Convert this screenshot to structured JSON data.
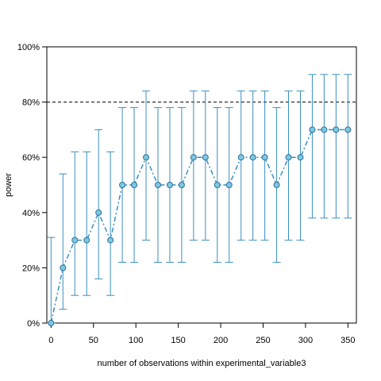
{
  "chart_data": {
    "type": "line",
    "title": "",
    "xlabel": "number of observations within experimental_variable3",
    "ylabel": "power",
    "xlim": [
      -5,
      360
    ],
    "ylim": [
      0,
      1
    ],
    "x_ticks": [
      0,
      50,
      100,
      150,
      200,
      250,
      300,
      350
    ],
    "x_tick_labels": [
      "0",
      "50",
      "100",
      "150",
      "200",
      "250",
      "300",
      "350"
    ],
    "y_ticks": [
      0,
      0.2,
      0.4,
      0.6,
      0.8,
      1.0
    ],
    "y_tick_labels": [
      "0%",
      "20%",
      "40%",
      "60%",
      "80%",
      "100%"
    ],
    "reference_line": {
      "y": 0.8,
      "style": "dashed",
      "color": "#000000"
    },
    "series": [
      {
        "x": [
          0,
          14,
          28,
          42,
          56,
          70,
          84,
          98,
          112,
          126,
          140,
          154,
          168,
          182,
          196,
          210,
          224,
          238,
          252,
          266,
          280,
          294,
          308,
          322,
          336,
          350
        ],
        "y": [
          0.0,
          0.2,
          0.3,
          0.3,
          0.4,
          0.3,
          0.5,
          0.5,
          0.6,
          0.5,
          0.5,
          0.5,
          0.6,
          0.6,
          0.5,
          0.5,
          0.6,
          0.6,
          0.6,
          0.5,
          0.6,
          0.6,
          0.7,
          0.7,
          0.7,
          0.7
        ],
        "ci_lower": [
          0.0,
          0.05,
          0.1,
          0.1,
          0.16,
          0.1,
          0.22,
          0.22,
          0.3,
          0.22,
          0.22,
          0.22,
          0.3,
          0.3,
          0.22,
          0.22,
          0.3,
          0.3,
          0.3,
          0.22,
          0.3,
          0.3,
          0.38,
          0.38,
          0.38,
          0.38
        ],
        "ci_upper": [
          0.31,
          0.54,
          0.62,
          0.62,
          0.7,
          0.62,
          0.78,
          0.78,
          0.84,
          0.78,
          0.78,
          0.78,
          0.84,
          0.84,
          0.78,
          0.78,
          0.84,
          0.84,
          0.84,
          0.78,
          0.84,
          0.84,
          0.9,
          0.9,
          0.9,
          0.9
        ]
      }
    ],
    "colors": {
      "line": "#3b8fbf",
      "point_fill": "#7ec8e3",
      "errorbar": "#3b8fbf"
    },
    "grid": false,
    "legend": "none"
  }
}
